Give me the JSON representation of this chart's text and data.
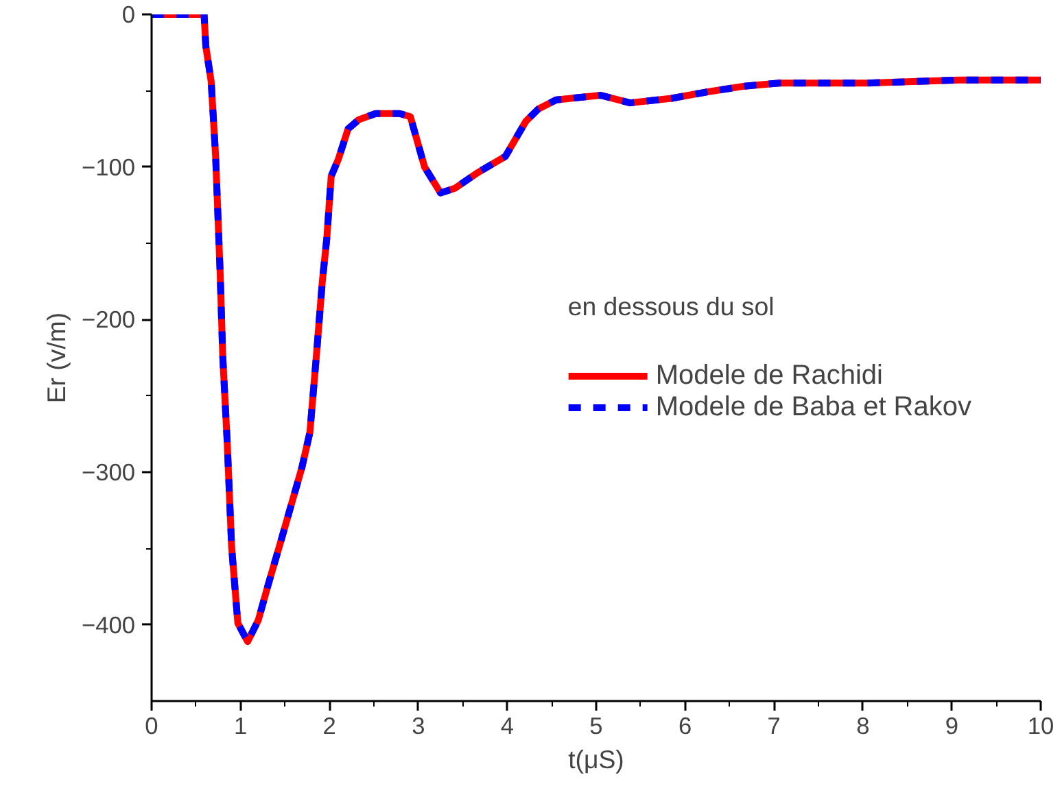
{
  "chart_data": {
    "type": "line",
    "xlabel": "t(μS)",
    "ylabel": "Er (v/m)",
    "legend_title": "en dessous du sol",
    "x": [
      0,
      0.59,
      0.61,
      0.67,
      0.72,
      0.77,
      0.8,
      0.85,
      0.9,
      0.97,
      1.08,
      1.2,
      1.31,
      1.45,
      1.69,
      1.78,
      1.85,
      1.92,
      1.97,
      2.02,
      2.1,
      2.21,
      2.33,
      2.52,
      2.79,
      2.91,
      3.07,
      3.25,
      3.41,
      3.66,
      3.98,
      4.21,
      4.35,
      4.55,
      5.05,
      5.38,
      5.85,
      6.23,
      6.67,
      7.06,
      8.04,
      9.09,
      10
    ],
    "series": [
      {
        "name": "Modele de Rachidi",
        "color": "#ff0000",
        "line_style": "solid",
        "values": [
          0,
          0,
          -21,
          -44,
          -93,
          -168,
          -224,
          -280,
          -349,
          -399,
          -411,
          -397,
          -374,
          -346,
          -297,
          -274,
          -226,
          -175,
          -147,
          -106,
          -95,
          -75,
          -69,
          -65,
          -65,
          -67,
          -100,
          -117,
          -114,
          -104,
          -93,
          -70,
          -62,
          -56,
          -53,
          -58,
          -55,
          -51,
          -47,
          -45,
          -45,
          -43,
          -43
        ]
      },
      {
        "name": "Modele de Baba et Rakov",
        "color": "#0000ff",
        "line_style": "dashed",
        "values": [
          0,
          0,
          -21,
          -44,
          -93,
          -168,
          -224,
          -280,
          -349,
          -399,
          -411,
          -397,
          -374,
          -346,
          -297,
          -274,
          -226,
          -175,
          -147,
          -106,
          -95,
          -75,
          -69,
          -65,
          -65,
          -67,
          -100,
          -117,
          -114,
          -104,
          -93,
          -70,
          -62,
          -56,
          -53,
          -58,
          -55,
          -51,
          -47,
          -45,
          -45,
          -43,
          -43
        ]
      }
    ],
    "xlim": [
      0,
      10
    ],
    "xticks": [
      0,
      1,
      2,
      3,
      4,
      5,
      6,
      7,
      8,
      9,
      10
    ],
    "ylim": [
      -450,
      0
    ],
    "yticks": [
      0,
      -100,
      -200,
      -300,
      -400
    ],
    "grid": false,
    "legend": "right",
    "marker": "none"
  }
}
